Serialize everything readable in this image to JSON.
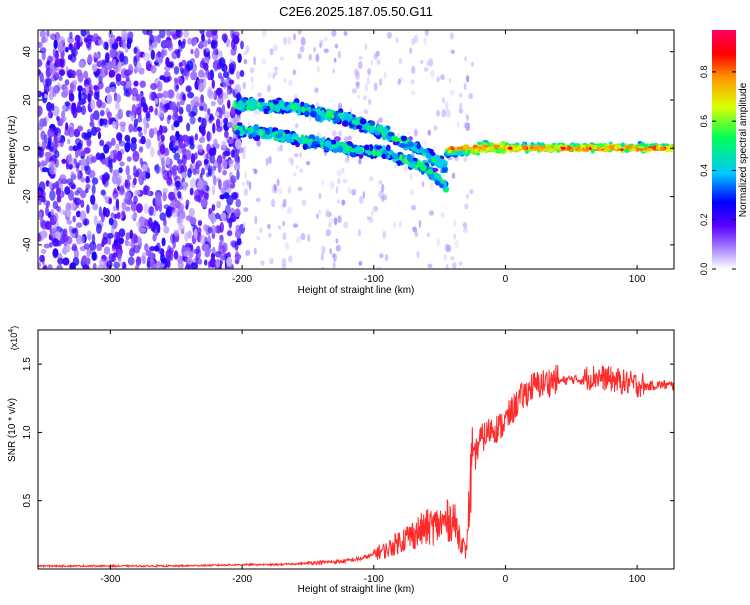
{
  "title": "C2E6.2025.187.05.50.G11",
  "chart_data": [
    {
      "type": "heatmap",
      "xlabel": "Height of straight line (km)",
      "ylabel": "Frequency (Hz)",
      "xlim": [
        -355,
        128
      ],
      "ylim": [
        -50,
        49
      ],
      "xticks": [
        -300,
        -200,
        -100,
        0,
        100
      ],
      "yticks": [
        -40,
        -20,
        0,
        20,
        40
      ],
      "colorbar": {
        "label": "Normalized spectral amplitude",
        "range": [
          0,
          0.97
        ],
        "ticks": [
          0.0,
          0.2,
          0.4,
          0.6,
          0.8
        ],
        "colors": [
          "#ffffff",
          "#ad8cff",
          "#5a00ff",
          "#0000ff",
          "#00c8ff",
          "#00ff55",
          "#dcff00",
          "#ff9600",
          "#ff0000",
          "#ff0064"
        ]
      },
      "features": {
        "noise_region_x": [
          -355,
          -200
        ],
        "upper_branch": {
          "x": [
            -205,
            -160,
            -120,
            -90,
            -60,
            -45
          ],
          "y": [
            18,
            17,
            12,
            6,
            -2,
            -8
          ]
        },
        "lower_branch": {
          "x": [
            -205,
            -160,
            -120,
            -90,
            -60,
            -45
          ],
          "y": [
            8,
            4,
            0,
            -2,
            -8,
            -16
          ]
        },
        "steady_line": {
          "x": [
            -45,
            128
          ],
          "y": [
            0,
            0
          ]
        }
      }
    },
    {
      "type": "line",
      "xlabel": "Height of straight line (km)",
      "ylabel": "SNR (10 * v/v)",
      "y_multiplier": "(x10",
      "y_multiplier_exp": "4",
      "y_multiplier_close": ")",
      "xlim": [
        -355,
        128
      ],
      "ylim": [
        0,
        1.75
      ],
      "xticks": [
        -300,
        -200,
        -100,
        0,
        100
      ],
      "yticks": [
        0.5,
        1.0,
        1.5
      ],
      "color": "#ff2a2a",
      "series": [
        {
          "x": [
            -355,
            -300,
            -250,
            -200,
            -175,
            -150,
            -125,
            -110,
            -100,
            -90,
            -80,
            -70,
            -60,
            -50,
            -40,
            -30,
            -25,
            -20,
            -15,
            -10,
            -5,
            0,
            10,
            20,
            30,
            40,
            50,
            60,
            70,
            80,
            90,
            100,
            110,
            120,
            128
          ],
          "y": [
            0.02,
            0.02,
            0.02,
            0.03,
            0.03,
            0.04,
            0.05,
            0.07,
            0.1,
            0.12,
            0.18,
            0.22,
            0.26,
            0.28,
            0.32,
            0.1,
            0.72,
            0.9,
            0.95,
            1.0,
            1.0,
            1.05,
            1.2,
            1.3,
            1.33,
            1.36,
            1.38,
            1.37,
            1.38,
            1.36,
            1.34,
            1.32,
            1.33,
            1.34,
            1.33
          ]
        }
      ]
    }
  ]
}
